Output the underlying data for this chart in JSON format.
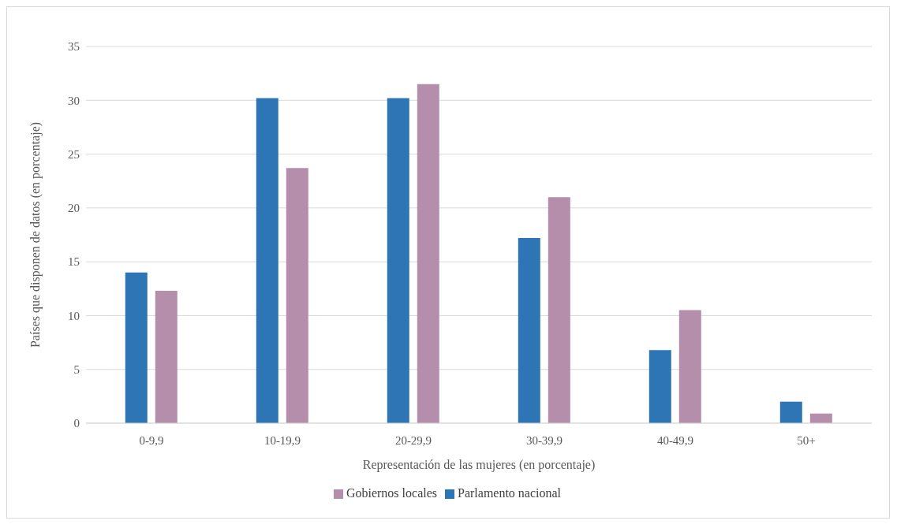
{
  "chart_data": {
    "type": "bar",
    "xlabel": "Representación de las mujeres (en porcentaje)",
    "ylabel": "Países que disponen de datos (en porcentaje)",
    "categories": [
      "0-9,9",
      "10-19,9",
      "20-29,9",
      "30-39,9",
      "40-49,9",
      "50+"
    ],
    "series": [
      {
        "name": "Parlamento nacional",
        "color": "#2e75b6",
        "values": [
          14.0,
          30.2,
          30.2,
          17.2,
          6.8,
          2.0
        ]
      },
      {
        "name": "Gobiernos locales",
        "color": "#b48eab",
        "values": [
          12.3,
          23.7,
          31.5,
          21.0,
          10.5,
          0.9
        ]
      }
    ],
    "ylim": [
      0,
      35
    ],
    "yticks": [
      0,
      5,
      10,
      15,
      20,
      25,
      30,
      35
    ],
    "grid": "y",
    "legend": "bottom"
  }
}
